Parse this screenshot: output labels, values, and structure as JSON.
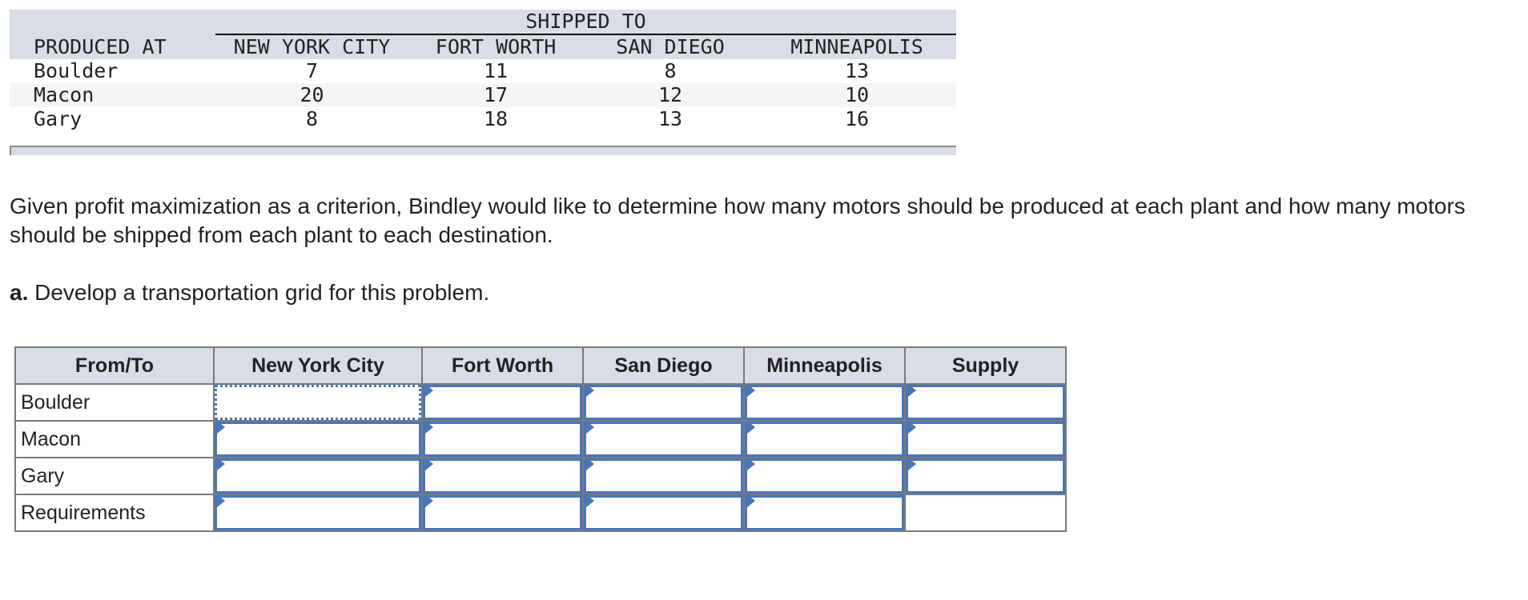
{
  "cost_table": {
    "group_header": "SHIPPED TO",
    "row_header": "PRODUCED AT",
    "columns": [
      "NEW YORK CITY",
      "FORT WORTH",
      "SAN DIEGO",
      "MINNEAPOLIS"
    ],
    "rows": [
      {
        "label": "Boulder",
        "values": [
          "7",
          "11",
          "8",
          "13"
        ]
      },
      {
        "label": "Macon",
        "values": [
          "20",
          "17",
          "12",
          "10"
        ]
      },
      {
        "label": "Gary",
        "values": [
          "8",
          "18",
          "13",
          "16"
        ]
      }
    ]
  },
  "problem": {
    "paragraph": "Given profit maximization as a criterion, Bindley would like to determine how many motors should be produced at each plant and how many motors should be shipped from each plant to each destination.",
    "part_label": "a.",
    "part_text": " Develop a transportation grid for this problem."
  },
  "grid": {
    "headers": [
      "From/To",
      "New York City",
      "Fort Worth",
      "San Diego",
      "Minneapolis",
      "Supply"
    ],
    "rows": [
      {
        "label": "Boulder",
        "cells": [
          "",
          "",
          "",
          "",
          ""
        ]
      },
      {
        "label": "Macon",
        "cells": [
          "",
          "",
          "",
          "",
          ""
        ]
      },
      {
        "label": "Gary",
        "cells": [
          "",
          "",
          "",
          "",
          ""
        ]
      },
      {
        "label": "Requirements",
        "cells": [
          "",
          "",
          "",
          ""
        ]
      }
    ],
    "accent_color": "#4a76b8"
  }
}
